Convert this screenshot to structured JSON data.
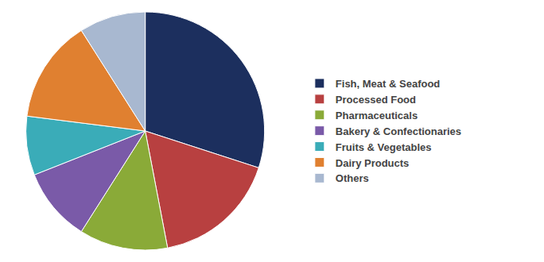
{
  "chart_data": {
    "type": "pie",
    "categories": [
      "Fish, Meat & Seafood",
      "Processed Food",
      "Pharmaceuticals",
      "Bakery & Confectionaries",
      "Fruits & Vegetables",
      "Dairy Products",
      "Others"
    ],
    "values": [
      30,
      17,
      12,
      10,
      8,
      14,
      9
    ],
    "colors": [
      "#1c2f5e",
      "#b84040",
      "#8aaa38",
      "#7a5aa8",
      "#3aacb8",
      "#e08030",
      "#a8b8d0"
    ],
    "legend": "right"
  }
}
